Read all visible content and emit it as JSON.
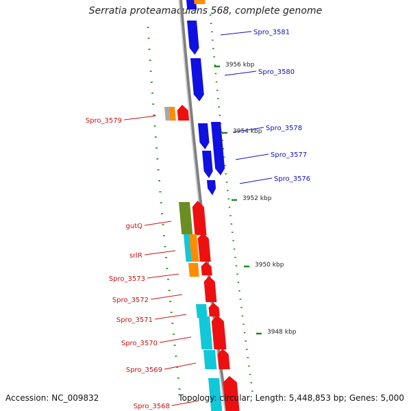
{
  "title": "Serratia proteamaculans 568, complete genome",
  "footer": {
    "accession": "Accession: NC_009832",
    "topology": "Topology: circular; Length: 5,448,853 bp; Genes: 5,000"
  },
  "colors": {
    "forward": "#1010e0",
    "reverse": "#ee1010",
    "cyan": "#10c8d8",
    "orange": "#ff8c00",
    "olive": "#6b8e23",
    "grey": "#a8a8a8",
    "tick": "#1a8a1a",
    "backbone": "#808080",
    "fwd_label": "#1010c0",
    "rev_label": "#cc1010"
  },
  "scale_labels": [
    "3956 kbp",
    "3954 kbp",
    "3952 kbp",
    "3950 kbp",
    "3948 kbp"
  ],
  "forward_labels": [
    "Spro_3581",
    "Spro_3580",
    "Spro_3578",
    "Spro_3577",
    "Spro_3576"
  ],
  "reverse_labels": [
    "Spro_3579",
    "gutQ",
    "srlR",
    "Spro_3573",
    "Spro_3572",
    "Spro_3571",
    "Spro_3570",
    "Spro_3569",
    "Spro_3568"
  ]
}
